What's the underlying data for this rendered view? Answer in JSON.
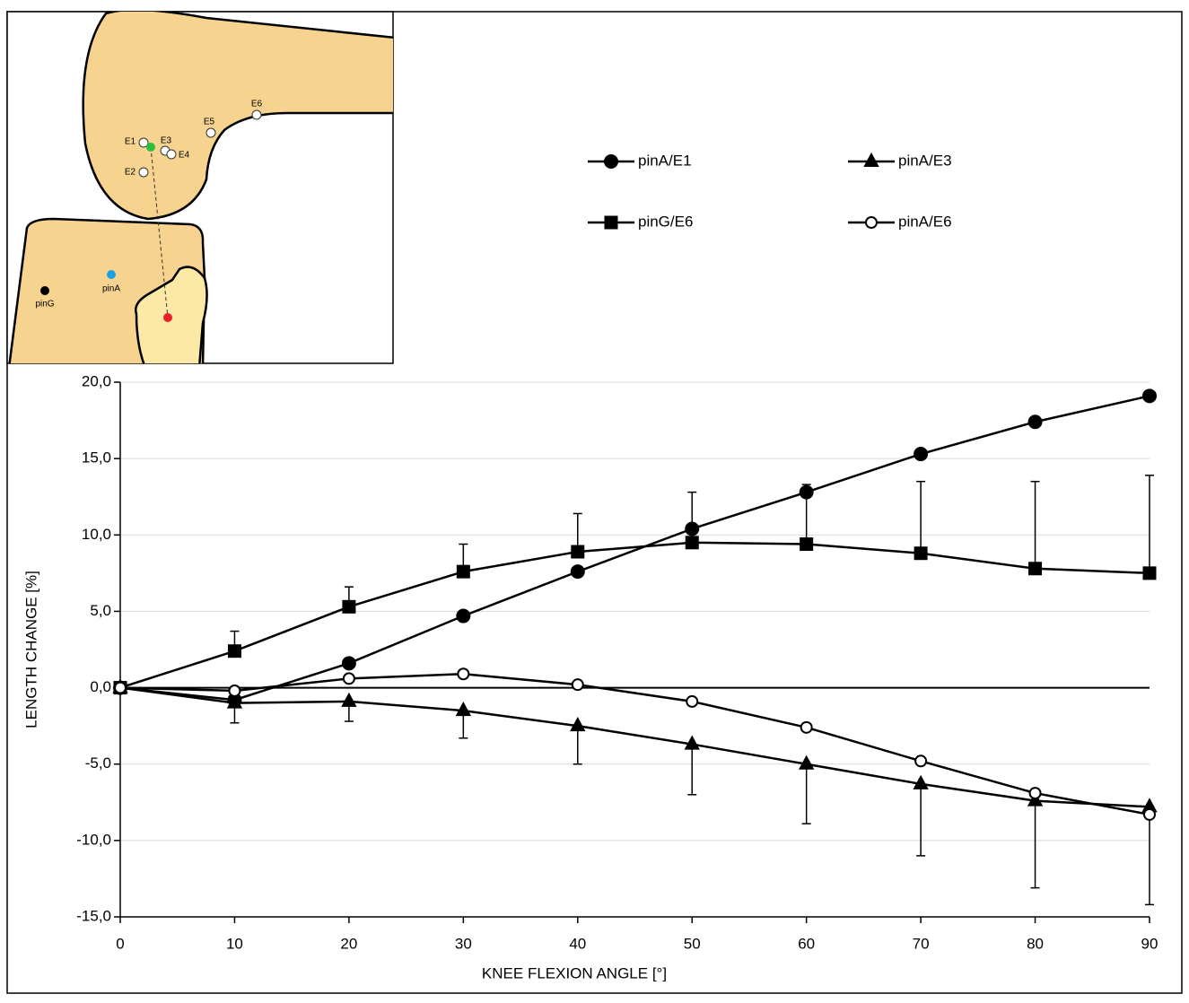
{
  "chart_data": {
    "type": "line",
    "x": [
      0,
      10,
      20,
      30,
      40,
      50,
      60,
      70,
      80,
      90
    ],
    "xlim": [
      0,
      90
    ],
    "xticks": [
      0,
      10,
      20,
      30,
      40,
      50,
      60,
      70,
      80,
      90
    ],
    "ylim": [
      -15,
      20
    ],
    "yticks": [
      {
        "value": -15,
        "label": "-15,0"
      },
      {
        "value": -10,
        "label": "-10,0"
      },
      {
        "value": -5,
        "label": "-5,0"
      },
      {
        "value": 0,
        "label": "0,0"
      },
      {
        "value": 5,
        "label": "5,0"
      },
      {
        "value": 10,
        "label": "10,0"
      },
      {
        "value": 15,
        "label": "15,0"
      },
      {
        "value": 20,
        "label": "20,0"
      }
    ],
    "xlabel": "KNEE FLEXION ANGLE [°]",
    "ylabel": "LENGTH CHANGE [%]",
    "grid": true,
    "series": [
      {
        "name": "pinA/E1",
        "color": "#000000",
        "marker": "circle",
        "values": [
          0,
          -0.8,
          1.6,
          4.7,
          7.6,
          10.4,
          12.8,
          15.3,
          17.4,
          19.1
        ]
      },
      {
        "name": "pinA/E3",
        "color": "#000000",
        "marker": "triangle",
        "values": [
          0,
          -1.0,
          -0.9,
          -1.5,
          -2.5,
          -3.7,
          -5.0,
          -6.3,
          -7.4,
          -7.8
        ],
        "errors": [
          null,
          1.3,
          1.3,
          1.8,
          2.5,
          3.3,
          3.9,
          4.7,
          5.7,
          6.4
        ],
        "error_direction": "down"
      },
      {
        "name": "pinG/E6",
        "color": "#000000",
        "marker": "square",
        "values": [
          0,
          2.4,
          5.3,
          7.6,
          8.9,
          9.5,
          9.4,
          8.8,
          7.8,
          7.5
        ],
        "errors": [
          null,
          1.3,
          1.3,
          1.8,
          2.5,
          3.3,
          3.9,
          4.7,
          5.7,
          6.4
        ],
        "error_direction": "up"
      },
      {
        "name": "pinA/E6",
        "color": "#000000",
        "marker": "open-circle",
        "values": [
          0,
          -0.2,
          0.6,
          0.9,
          0.2,
          -0.9,
          -2.6,
          -4.8,
          -6.9,
          -8.3
        ]
      }
    ]
  },
  "inset": {
    "labels": [
      "E1",
      "E2",
      "E3",
      "E4",
      "E5",
      "E6",
      "pinA",
      "pinG"
    ]
  }
}
